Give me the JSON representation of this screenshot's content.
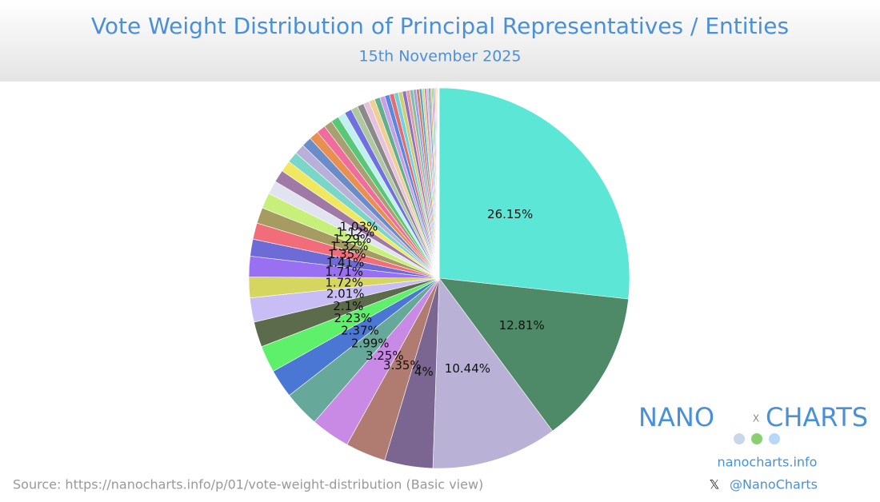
{
  "chart_data": {
    "type": "pie",
    "title": "Vote Weight Distribution of Principal Representatives / Entities",
    "subtitle": "15th November 2025",
    "source": "Source: https://nanocharts.info/p/01/vote-weight-distribution (Basic view)",
    "values": [
      26.15,
      12.81,
      10.44,
      4,
      3.35,
      3.25,
      2.99,
      2.37,
      2.23,
      2.1,
      2.01,
      1.72,
      1.71,
      1.41,
      1.35,
      1.32,
      1.29,
      1.12,
      1.03,
      0.95,
      0.9,
      0.85,
      0.82,
      0.78,
      0.75,
      0.7,
      0.66,
      0.62,
      0.6,
      0.57,
      0.54,
      0.5,
      0.48,
      0.45,
      0.42,
      0.4,
      0.38,
      0.36,
      0.34,
      0.32,
      0.3,
      0.28,
      0.26,
      0.24,
      0.22,
      0.2,
      0.18,
      0.16,
      0.14,
      0.12,
      0.1,
      0.1,
      0.08,
      0.08,
      0.06,
      0.06,
      0.05,
      0.05,
      0.04
    ],
    "value_labels": [
      "26.15%",
      "12.81%",
      "10.44%",
      "4%",
      "3.35%",
      "3.25%",
      "2.99%",
      "2.37%",
      "2.23%",
      "2.1%",
      "2.01%",
      "1.72%",
      "1.71%",
      "1.41%",
      "1.35%",
      "1.32%",
      "1.29%",
      "1.12%",
      "1.03%",
      null,
      null,
      null,
      null,
      null,
      null,
      null,
      null,
      null,
      null,
      null,
      null,
      null,
      null,
      null,
      null,
      null,
      null,
      null,
      null,
      null,
      null,
      null,
      null,
      null,
      null,
      null,
      null,
      null,
      null,
      null,
      null,
      null,
      null,
      null,
      null,
      null,
      null,
      null,
      null
    ],
    "colors": [
      "#5ce6d6",
      "#4e8a68",
      "#b9b1d6",
      "#7a6690",
      "#b07c72",
      "#c98ae6",
      "#66a89a",
      "#4a77d4",
      "#5ef06a",
      "#5c6b4c",
      "#c8bef5",
      "#d4d660",
      "#9a70f2",
      "#6f6bd6",
      "#f26d7a",
      "#a69c62",
      "#c6f07a",
      "#e1e4f0",
      "#a07aa6",
      "#f0e860",
      "#7ad6c8",
      "#b8b0d8",
      "#6a8cc8",
      "#e89050",
      "#f06c9c",
      "#a8a070",
      "#58c878",
      "#c0f0f0",
      "#7070e0",
      "#b0c8a0",
      "#8a8a8a",
      "#e8c0e0",
      "#f0d090",
      "#60b090",
      "#c8a0e8",
      "#5a88e0",
      "#e07070",
      "#70d0e0",
      "#d0d070",
      "#9070c0",
      "#e0a0a0",
      "#80c0a0",
      "#a0a0e0",
      "#d08060",
      "#60a0d0",
      "#c0e080",
      "#e080c0",
      "#a0d0d0",
      "#8080b0",
      "#d0b080",
      "#70e090",
      "#b070b0",
      "#90b0e0",
      "#e0c060",
      "#60c0c0",
      "#c090a0",
      "#a0e0a0",
      "#8090d0",
      "#d0a0d0"
    ],
    "logo": {
      "left": "NANO",
      "mark": "X",
      "right": "CHARTS",
      "site": "nanocharts.info",
      "x_icon": "𝕏",
      "handle": "@NanoCharts"
    }
  }
}
